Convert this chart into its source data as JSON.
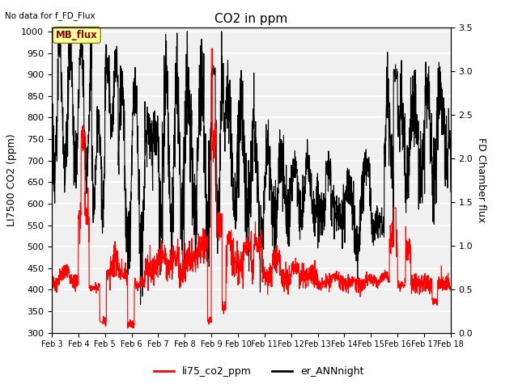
{
  "title": "CO2 in ppm",
  "top_left_text": "No data for f_FD_Flux",
  "ylabel_left": "LI7500 CO2 (ppm)",
  "ylabel_right": "FD Chamber flux",
  "xlim_days": [
    3,
    18
  ],
  "ylim_left": [
    300,
    1010
  ],
  "ylim_right": [
    0.0,
    3.5
  ],
  "yticks_left": [
    300,
    350,
    400,
    450,
    500,
    550,
    600,
    650,
    700,
    750,
    800,
    850,
    900,
    950,
    1000
  ],
  "yticks_right": [
    0.0,
    0.5,
    1.0,
    1.5,
    2.0,
    2.5,
    3.0,
    3.5
  ],
  "xtick_labels": [
    "Feb 3",
    "Feb 4",
    "Feb 5",
    "Feb 6",
    "Feb 7",
    "Feb 8",
    "Feb 9",
    "Feb 10",
    "Feb 11",
    "Feb 12",
    "Feb 13",
    "Feb 14",
    "Feb 15",
    "Feb 16",
    "Feb 17",
    "Feb 18"
  ],
  "color_red": "#FF0000",
  "color_black": "#000000",
  "legend_labels": [
    "li75_co2_ppm",
    "er_ANNnight"
  ],
  "legend_colors": [
    "#FF0000",
    "#000000"
  ],
  "mb_flux_box_color": "#FFFF99",
  "mb_flux_text_color": "#8B0000",
  "background_plot": "#F0F0F0",
  "background_fig": "#FFFFFF",
  "grid_color": "#FFFFFF",
  "lw_red": 0.8,
  "lw_black": 0.8
}
